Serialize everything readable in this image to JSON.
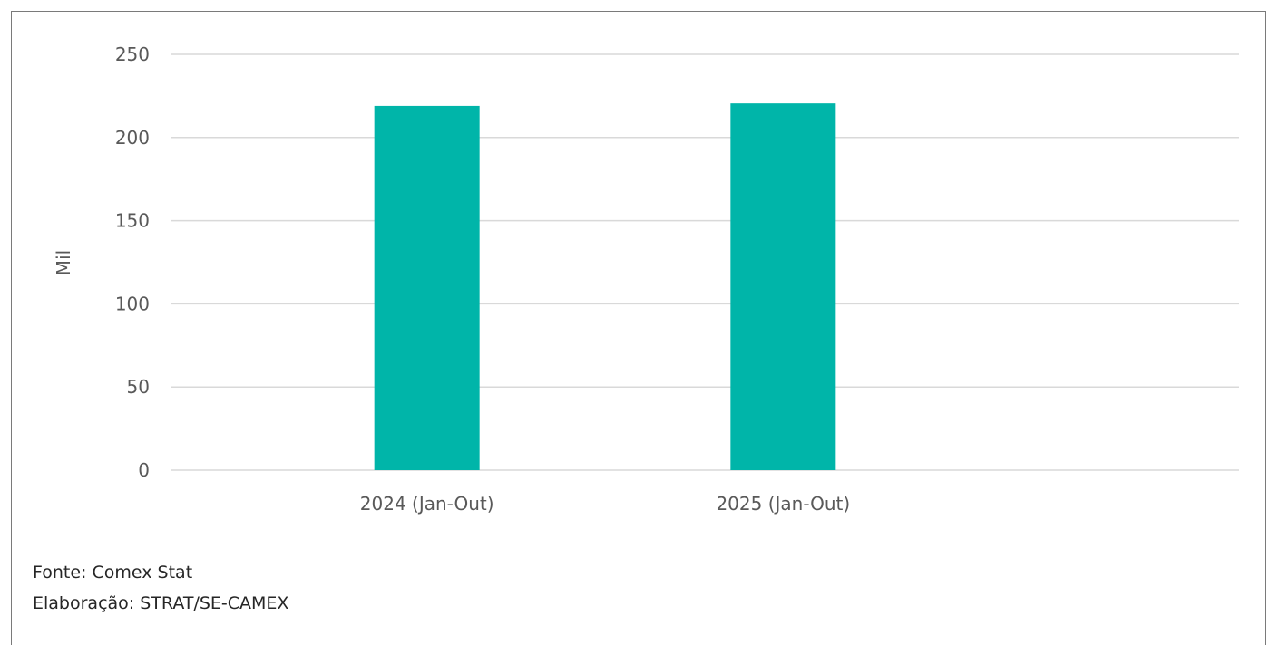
{
  "chart_data": {
    "type": "bar",
    "categories": [
      "2024 (Jan-Out)",
      "2025 (Jan-Out)"
    ],
    "values": [
      219,
      220.5
    ],
    "title": "",
    "xlabel": "",
    "ylabel": "Mil",
    "ylim": [
      0,
      250
    ],
    "yticks": [
      0,
      50,
      100,
      150,
      200,
      250
    ],
    "grid": true,
    "bar_color": "#00b5a9"
  },
  "footer": {
    "source": "Fonte: Comex Stat",
    "elaboration": "Elaboração: STRAT/SE-CAMEX"
  }
}
